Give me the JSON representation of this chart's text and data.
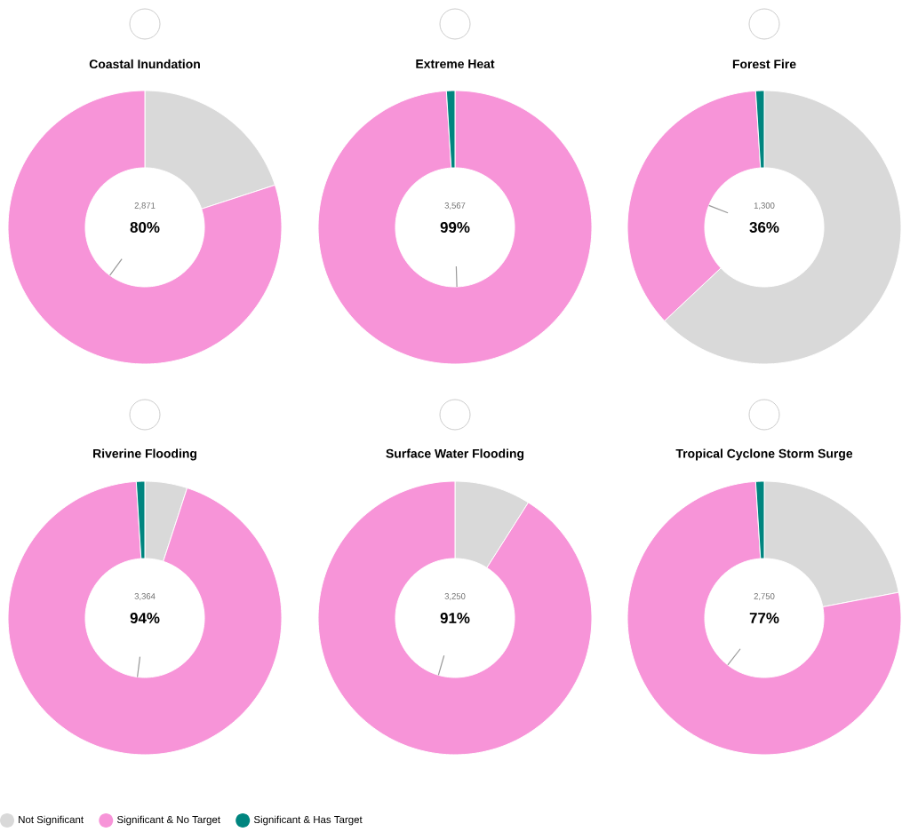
{
  "chart_data": [
    {
      "type": "donut",
      "title": "Coastal Inundation",
      "categories": [
        "Not Significant",
        "Significant & No Target",
        "Significant & Has Target"
      ],
      "values": [
        20,
        80,
        0
      ],
      "colors": [
        "#d9d9d9",
        "#f794d8",
        "#00857f"
      ],
      "value_labels": [
        null,
        "80%",
        null
      ],
      "annotations": [
        "2,871"
      ],
      "legend": "bottom"
    },
    {
      "type": "donut",
      "title": "Extreme Heat",
      "values": [
        0,
        99,
        1
      ],
      "colors": [
        "#d9d9d9",
        "#f794d8",
        "#00857f"
      ],
      "value_labels": [
        null,
        "99%",
        null
      ],
      "annotations": [
        "3,567"
      ]
    },
    {
      "type": "donut",
      "title": "Forest Fire",
      "values": [
        63,
        36,
        1
      ],
      "colors": [
        "#d9d9d9",
        "#f794d8",
        "#00857f"
      ],
      "value_labels": [
        null,
        "36%",
        null
      ],
      "annotations": [
        "1,300"
      ]
    },
    {
      "type": "donut",
      "title": "Riverine Flooding",
      "values": [
        5,
        94,
        1
      ],
      "colors": [
        "#d9d9d9",
        "#f794d8",
        "#00857f"
      ],
      "value_labels": [
        null,
        "94%",
        null
      ],
      "annotations": [
        "3,364"
      ]
    },
    {
      "type": "donut",
      "title": "Surface Water Flooding",
      "values": [
        9,
        91,
        0
      ],
      "colors": [
        "#d9d9d9",
        "#f794d8",
        "#00857f"
      ],
      "value_labels": [
        null,
        "91%",
        null
      ],
      "annotations": [
        "3,250"
      ]
    },
    {
      "type": "donut",
      "title": "Tropical Cyclone Storm Surge",
      "values": [
        22,
        77,
        1
      ],
      "colors": [
        "#d9d9d9",
        "#f794d8",
        "#00857f"
      ],
      "value_labels": [
        null,
        "77%",
        null
      ],
      "annotations": [
        "2,750"
      ]
    }
  ]
}
